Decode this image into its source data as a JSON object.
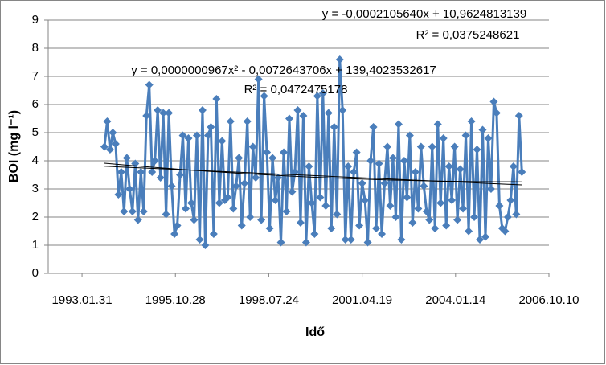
{
  "chart_data": {
    "type": "line",
    "x_label": "Idő",
    "y_label": "BOI (mg l⁻¹)",
    "series": [
      {
        "color": "#4a7ebb",
        "x": [
          34240,
          34270,
          34300,
          34330,
          34360,
          34390,
          34420,
          34450,
          34480,
          34510,
          34540,
          34570,
          34600,
          34630,
          34660,
          34690,
          34720,
          34750,
          34780,
          34810,
          34840,
          34870,
          34900,
          34930,
          34960,
          34990,
          35020,
          35050,
          35080,
          35110,
          35140,
          35170,
          35200,
          35230,
          35260,
          35290,
          35320,
          35350,
          35380,
          35410,
          35440,
          35470,
          35500,
          35530,
          35560,
          35590,
          35620,
          35650,
          35680,
          35710,
          35740,
          35770,
          35800,
          35830,
          35860,
          35890,
          35920,
          35950,
          35980,
          36010,
          36040,
          36070,
          36100,
          36130,
          36160,
          36190,
          36220,
          36250,
          36280,
          36310,
          36340,
          36370,
          36400,
          36430,
          36460,
          36490,
          36520,
          36550,
          36580,
          36610,
          36640,
          36670,
          36700,
          36730,
          36760,
          36790,
          36820,
          36850,
          36880,
          36910,
          36940,
          36970,
          37000,
          37030,
          37060,
          37090,
          37120,
          37150,
          37180,
          37210,
          37240,
          37270,
          37300,
          37330,
          37360,
          37390,
          37420,
          37450,
          37480,
          37510,
          37540,
          37570,
          37600,
          37630,
          37660,
          37690,
          37720,
          37750,
          37780,
          37810,
          37840,
          37870,
          37900,
          37930,
          37960,
          37990,
          38020,
          38050,
          38080,
          38110,
          38140,
          38170,
          38200,
          38230,
          38260,
          38290,
          38320,
          38350,
          38380,
          38410,
          38440,
          38470,
          38500,
          38530,
          38560,
          38590,
          38620,
          38650,
          38680,
          38710
        ],
        "values": [
          4.5,
          5.4,
          4.4,
          5.0,
          4.6,
          2.8,
          3.6,
          2.2,
          4.1,
          3.0,
          2.2,
          3.9,
          1.9,
          3.6,
          2.2,
          5.6,
          6.7,
          3.6,
          4.0,
          5.8,
          3.4,
          5.7,
          2.1,
          5.7,
          3.1,
          1.4,
          1.7,
          3.5,
          4.9,
          2.3,
          4.8,
          2.5,
          1.9,
          4.9,
          1.2,
          5.8,
          1.0,
          4.9,
          5.2,
          1.4,
          6.2,
          2.5,
          4.7,
          2.6,
          2.7,
          5.4,
          2.3,
          3.1,
          4.1,
          1.7,
          3.2,
          5.4,
          2.0,
          4.5,
          3.4,
          6.9,
          1.9,
          6.3,
          4.3,
          1.6,
          4.1,
          2.6,
          3.4,
          1.1,
          4.3,
          2.2,
          5.5,
          2.9,
          3.6,
          5.8,
          1.8,
          5.6,
          1.1,
          3.8,
          2.5,
          1.4,
          6.3,
          2.7,
          6.4,
          2.4,
          5.7,
          1.6,
          5.2,
          2.1,
          7.6,
          5.8,
          1.2,
          3.8,
          1.2,
          3.6,
          4.3,
          1.7,
          3.2,
          2.6,
          1.1,
          4.0,
          5.2,
          1.6,
          3.9,
          1.4,
          3.2,
          4.5,
          2.4,
          4.1,
          2.0,
          5.3,
          1.2,
          4.0,
          2.7,
          4.9,
          1.8,
          3.6,
          2.3,
          4.5,
          3.1,
          2.2,
          1.9,
          4.5,
          1.6,
          5.3,
          2.5,
          4.8,
          1.7,
          3.8,
          2.6,
          4.5,
          1.9,
          3.7,
          2.3,
          4.9,
          1.5,
          5.4,
          2.0,
          4.4,
          1.2,
          5.1,
          1.3,
          4.8,
          3.0,
          6.1,
          5.7,
          2.4,
          1.6,
          1.5,
          2.0,
          2.6,
          3.8,
          2.1,
          5.6,
          3.6
        ]
      }
    ],
    "trendlines": [
      {
        "type": "linear",
        "color": "#000000",
        "equation": "y = -0,0002105640x + 10,9624813139",
        "r2": "R² = 0,0375248621"
      },
      {
        "type": "poly2",
        "color": "#000000",
        "equation": "y = 0,0000000967x² - 0,0072643706x + 139,4023532617",
        "r2": "R² = 0,0472475178"
      }
    ],
    "xlim": [
      33638,
      39000
    ],
    "xticks": [
      {
        "value": 34000,
        "label": "1993.01.31"
      },
      {
        "value": 35000,
        "label": "1995.10.28"
      },
      {
        "value": 36000,
        "label": "1998.07.24"
      },
      {
        "value": 37000,
        "label": "2001.04.19"
      },
      {
        "value": 38000,
        "label": "2004.01.14"
      },
      {
        "value": 39000,
        "label": "2006.10.10"
      }
    ],
    "ylim": [
      0,
      9
    ],
    "yticks": [
      0,
      1,
      2,
      3,
      4,
      5,
      6,
      7,
      8,
      9
    ],
    "grid": true
  }
}
